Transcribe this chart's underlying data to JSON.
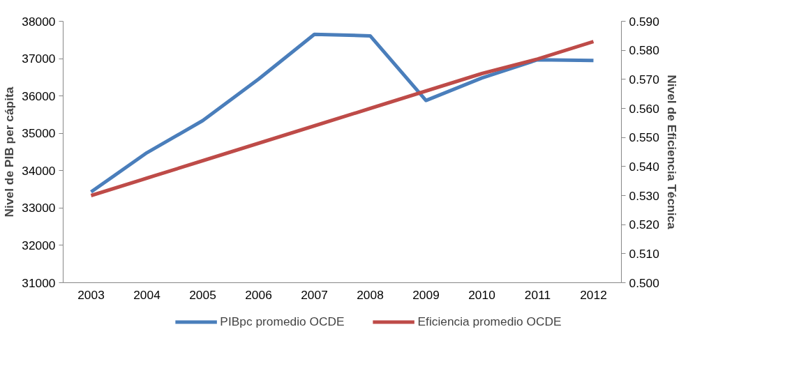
{
  "chart_data": {
    "type": "line",
    "ylabel": "Nivel de PIB per cápita",
    "y2label": "Nivel de Eficiencia Técnica",
    "categories": [
      "2003",
      "2004",
      "2005",
      "2006",
      "2007",
      "2008",
      "2009",
      "2010",
      "2011",
      "2012"
    ],
    "series": [
      {
        "name": "PIBpc promedio OCDE",
        "color": "#4a7ebb",
        "values": [
          33430,
          34480,
          35340,
          36450,
          37650,
          37610,
          35880,
          36480,
          36970,
          36950
        ]
      },
      {
        "name": "Eficiencia promedio OCDE",
        "color": "#be4b48",
        "axis": "y2",
        "values": [
          0.53,
          0.536,
          0.542,
          0.548,
          0.554,
          0.56,
          0.566,
          0.572,
          0.577,
          0.583
        ]
      }
    ],
    "ylim": [
      31000,
      38000
    ],
    "yticks": [
      31000,
      32000,
      33000,
      34000,
      35000,
      36000,
      37000,
      38000
    ],
    "y2lim": [
      0.5,
      0.59
    ],
    "y2ticks": [
      {
        "value": 0.5,
        "label": "0.500"
      },
      {
        "value": 0.51,
        "label": "0.510"
      },
      {
        "value": 0.52,
        "label": "0.520"
      },
      {
        "value": 0.53,
        "label": "0.530"
      },
      {
        "value": 0.54,
        "label": "0.540"
      },
      {
        "value": 0.55,
        "label": "0.550"
      },
      {
        "value": 0.56,
        "label": "0.560"
      },
      {
        "value": 0.57,
        "label": "0.570"
      },
      {
        "value": 0.58,
        "label": "0.580"
      },
      {
        "value": 0.59,
        "label": "0.590"
      }
    ],
    "grid": false,
    "legend": "bottom",
    "marker": "none",
    "line_style": "solid"
  }
}
